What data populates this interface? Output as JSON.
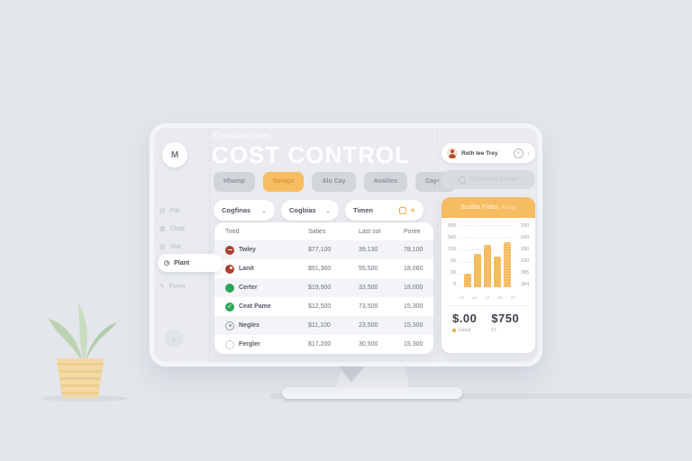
{
  "app": {
    "logo": "M"
  },
  "icons": {
    "chevron_down": "⌄",
    "chevron_right": "›",
    "sparkle": "✦"
  },
  "sidebar": {
    "items": [
      {
        "label": "Pat",
        "icon": "file-icon",
        "glyph": "▤"
      },
      {
        "label": "Cleat",
        "icon": "document-icon",
        "glyph": "▦"
      },
      {
        "label": "Wat",
        "icon": "grid-icon",
        "glyph": "▧"
      },
      {
        "label": "Plant",
        "icon": "clock-icon",
        "glyph": "◷",
        "active": true
      },
      {
        "label": "Fovet",
        "icon": "pencil-icon",
        "glyph": "✎"
      }
    ]
  },
  "header": {
    "title_small": "Construction",
    "title_big": "COST CONTROL",
    "user": {
      "name": "Reth lee Trey"
    }
  },
  "tabs": [
    {
      "label": "Hhamp"
    },
    {
      "label": "Gemga",
      "active": true
    },
    {
      "label": "Alu Cay"
    },
    {
      "label": "Avalites"
    },
    {
      "label": "Cayr Ia"
    }
  ],
  "filters": {
    "dropdown1": "Cogfinas",
    "dropdown2": "Cogbias",
    "date": "Timen"
  },
  "search": {
    "text": "Ceaushse Comei"
  },
  "table": {
    "headers": [
      "Tired",
      "Saties",
      "Last sot",
      "Poree"
    ],
    "rows": [
      {
        "icon": "red-dash",
        "name": "Twley",
        "saties": "$77,100",
        "last_sot": "39,130",
        "poree": "78,100"
      },
      {
        "icon": "red-dot",
        "name": "Lanit",
        "saties": "$91,300",
        "last_sot": "55,500",
        "poree": "18,060"
      },
      {
        "icon": "green-solid",
        "name": "Certer",
        "saties": "$19,900",
        "last_sot": "33,500",
        "poree": "18,000"
      },
      {
        "icon": "green-check",
        "name": "Ceat Pame",
        "saties": "$12,500",
        "last_sot": "73,500",
        "poree": "15,300"
      },
      {
        "icon": "gray-ring",
        "name": "Negles",
        "saties": "$11,100",
        "last_sot": "23,500",
        "poree": "15,300"
      },
      {
        "icon": "gray-dotted",
        "name": "Fergler",
        "saties": "$17,200",
        "last_sot": "30,500",
        "poree": "15,300"
      }
    ]
  },
  "panel": {
    "header": "Sudba Fidas",
    "note": "Accay",
    "totals": [
      {
        "value": "$.00",
        "label": "Dated"
      },
      {
        "value": "$750",
        "label": "F1"
      }
    ]
  },
  "chart_data": {
    "type": "bar",
    "title": "Sudba Fidas",
    "categories": [
      "02",
      "xa",
      "12",
      "03",
      "07"
    ],
    "values": [
      22,
      54,
      68,
      50,
      73
    ],
    "values_unit": "percent-of-plot-height",
    "left_ticks": [
      "500",
      "343",
      "110",
      "50",
      "30",
      "0"
    ],
    "right_ticks": [
      "200",
      "243",
      "200",
      "500",
      "385",
      "384"
    ],
    "bar_color": "#f6bc62",
    "dotted_index": 4,
    "grid": "dotted-horizontal",
    "legend": "none"
  }
}
